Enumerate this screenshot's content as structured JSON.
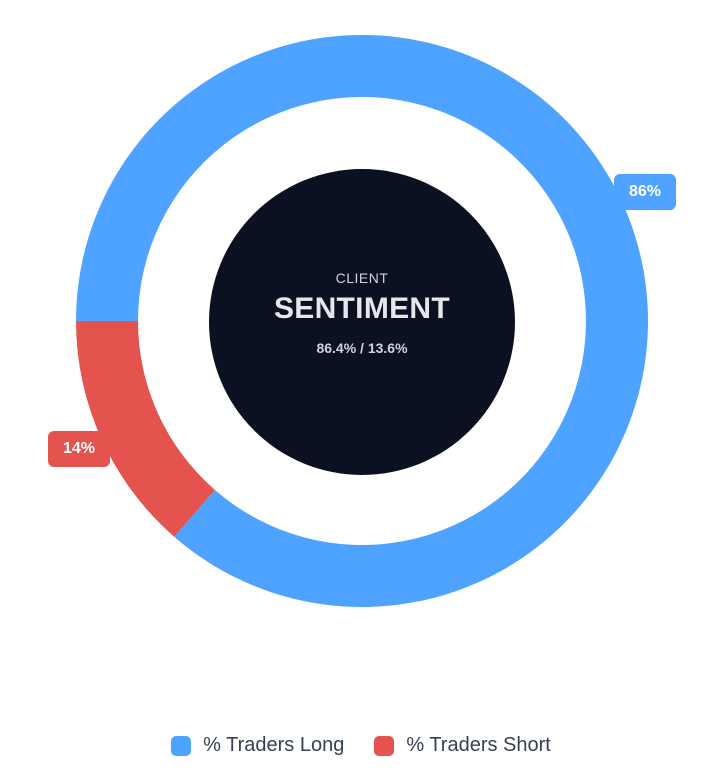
{
  "chart_data": {
    "type": "pie",
    "variant": "doughnut",
    "series": [
      {
        "name": "% Traders Long",
        "value": 86.4,
        "label": "86%",
        "color": "#4da3ff"
      },
      {
        "name": "% Traders Short",
        "value": 13.6,
        "label": "14%",
        "color": "#e5534f"
      }
    ],
    "center": {
      "kicker": "CLIENT",
      "title": "SENTIMENT",
      "ratio": "86.4% / 13.6%",
      "background": "#0b1120"
    },
    "legend": {
      "position": "bottom",
      "items": [
        "% Traders Long",
        "% Traders Short"
      ]
    }
  }
}
